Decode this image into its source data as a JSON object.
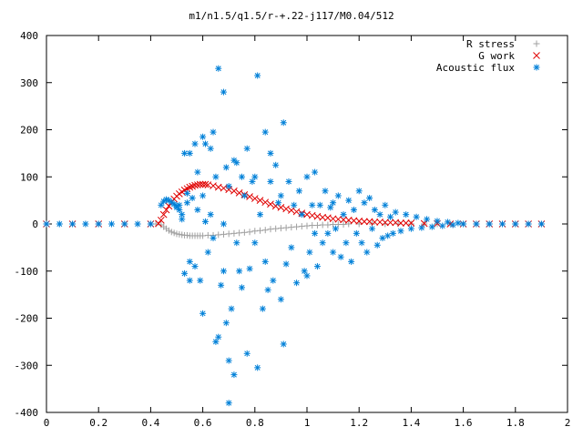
{
  "chart_data": {
    "type": "scatter",
    "title": "m1/n1.5/q1.5/r-+.22-j117/M0.04/512",
    "xlabel": "",
    "ylabel": "",
    "xlim": [
      0,
      2
    ],
    "ylim": [
      -400,
      400
    ],
    "x_ticks": [
      0,
      0.2,
      0.4,
      0.6,
      0.8,
      1,
      1.2,
      1.4,
      1.6,
      1.8,
      2
    ],
    "x_tick_labels": [
      "0",
      "0.2",
      "0.4",
      "0.6",
      "0.8",
      "1",
      "1.2",
      "1.4",
      "1.6",
      "1.8",
      "2"
    ],
    "y_ticks": [
      -400,
      -300,
      -200,
      -100,
      0,
      100,
      200,
      300,
      400
    ],
    "y_tick_labels": [
      "-400",
      "-300",
      "-200",
      "-100",
      "0",
      "100",
      "200",
      "300",
      "400"
    ],
    "grid": false,
    "legend_position": "top-right",
    "series": [
      {
        "name": "R stress",
        "marker": "plus",
        "color": "#a0a0a0",
        "points": [
          [
            0.0,
            0
          ],
          [
            0.05,
            0
          ],
          [
            0.1,
            0
          ],
          [
            0.15,
            0
          ],
          [
            0.2,
            0
          ],
          [
            0.25,
            0
          ],
          [
            0.3,
            0
          ],
          [
            0.35,
            0
          ],
          [
            0.4,
            0
          ],
          [
            0.42,
            0
          ],
          [
            0.44,
            -2
          ],
          [
            0.45,
            -6
          ],
          [
            0.46,
            -10
          ],
          [
            0.47,
            -14
          ],
          [
            0.48,
            -17
          ],
          [
            0.49,
            -19
          ],
          [
            0.5,
            -21
          ],
          [
            0.51,
            -22
          ],
          [
            0.52,
            -23
          ],
          [
            0.53,
            -24
          ],
          [
            0.54,
            -24
          ],
          [
            0.55,
            -25
          ],
          [
            0.56,
            -25
          ],
          [
            0.57,
            -25
          ],
          [
            0.58,
            -25
          ],
          [
            0.59,
            -25
          ],
          [
            0.6,
            -25
          ],
          [
            0.62,
            -24
          ],
          [
            0.64,
            -24
          ],
          [
            0.66,
            -23
          ],
          [
            0.68,
            -22
          ],
          [
            0.7,
            -21
          ],
          [
            0.72,
            -20
          ],
          [
            0.74,
            -19
          ],
          [
            0.76,
            -18
          ],
          [
            0.78,
            -17
          ],
          [
            0.8,
            -15
          ],
          [
            0.82,
            -14
          ],
          [
            0.84,
            -13
          ],
          [
            0.86,
            -11
          ],
          [
            0.88,
            -10
          ],
          [
            0.9,
            -9
          ],
          [
            0.92,
            -8
          ],
          [
            0.94,
            -7
          ],
          [
            0.96,
            -6
          ],
          [
            0.98,
            -5
          ],
          [
            1.0,
            -4
          ],
          [
            1.02,
            -3
          ],
          [
            1.04,
            -3
          ],
          [
            1.06,
            -2
          ],
          [
            1.08,
            -2
          ],
          [
            1.1,
            -1
          ],
          [
            1.12,
            -1
          ],
          [
            1.14,
            -1
          ],
          [
            1.16,
            0
          ],
          [
            1.2,
            0
          ],
          [
            1.25,
            0
          ],
          [
            1.3,
            0
          ],
          [
            1.35,
            0
          ],
          [
            1.4,
            0
          ],
          [
            1.45,
            0
          ],
          [
            1.5,
            0
          ],
          [
            1.55,
            0
          ],
          [
            1.6,
            0
          ],
          [
            1.65,
            0
          ],
          [
            1.7,
            0
          ],
          [
            1.75,
            0
          ],
          [
            1.8,
            0
          ],
          [
            1.85,
            0
          ],
          [
            1.9,
            0
          ]
        ]
      },
      {
        "name": "G work",
        "marker": "cross",
        "color": "#e00000",
        "points": [
          [
            0.0,
            0
          ],
          [
            0.1,
            0
          ],
          [
            0.2,
            0
          ],
          [
            0.3,
            0
          ],
          [
            0.4,
            0
          ],
          [
            0.43,
            1
          ],
          [
            0.44,
            8
          ],
          [
            0.45,
            20
          ],
          [
            0.46,
            30
          ],
          [
            0.47,
            38
          ],
          [
            0.48,
            46
          ],
          [
            0.49,
            53
          ],
          [
            0.5,
            59
          ],
          [
            0.51,
            64
          ],
          [
            0.52,
            68
          ],
          [
            0.53,
            72
          ],
          [
            0.54,
            75
          ],
          [
            0.55,
            78
          ],
          [
            0.56,
            80
          ],
          [
            0.57,
            82
          ],
          [
            0.58,
            83
          ],
          [
            0.59,
            84
          ],
          [
            0.6,
            84
          ],
          [
            0.61,
            84
          ],
          [
            0.62,
            83
          ],
          [
            0.64,
            81
          ],
          [
            0.66,
            78
          ],
          [
            0.68,
            76
          ],
          [
            0.7,
            73
          ],
          [
            0.72,
            70
          ],
          [
            0.74,
            66
          ],
          [
            0.76,
            62
          ],
          [
            0.78,
            58
          ],
          [
            0.8,
            54
          ],
          [
            0.82,
            50
          ],
          [
            0.84,
            46
          ],
          [
            0.86,
            42
          ],
          [
            0.88,
            38
          ],
          [
            0.9,
            35
          ],
          [
            0.92,
            32
          ],
          [
            0.94,
            29
          ],
          [
            0.96,
            26
          ],
          [
            0.98,
            23
          ],
          [
            1.0,
            20
          ],
          [
            1.02,
            18
          ],
          [
            1.04,
            16
          ],
          [
            1.06,
            14
          ],
          [
            1.08,
            13
          ],
          [
            1.1,
            11
          ],
          [
            1.12,
            10
          ],
          [
            1.14,
            9
          ],
          [
            1.16,
            8
          ],
          [
            1.18,
            7
          ],
          [
            1.2,
            6
          ],
          [
            1.22,
            5
          ],
          [
            1.24,
            5
          ],
          [
            1.26,
            4
          ],
          [
            1.28,
            4
          ],
          [
            1.3,
            3
          ],
          [
            1.32,
            3
          ],
          [
            1.34,
            3
          ],
          [
            1.36,
            2
          ],
          [
            1.38,
            2
          ],
          [
            1.4,
            2
          ],
          [
            1.45,
            1
          ],
          [
            1.5,
            1
          ],
          [
            1.55,
            0
          ],
          [
            1.6,
            0
          ],
          [
            1.65,
            0
          ],
          [
            1.7,
            0
          ],
          [
            1.75,
            0
          ],
          [
            1.8,
            0
          ],
          [
            1.85,
            0
          ],
          [
            1.9,
            0
          ]
        ]
      },
      {
        "name": "Acoustic flux",
        "marker": "star",
        "color": "#0080d8",
        "points": [
          [
            0.0,
            0
          ],
          [
            0.05,
            0
          ],
          [
            0.1,
            0
          ],
          [
            0.15,
            0
          ],
          [
            0.2,
            0
          ],
          [
            0.25,
            0
          ],
          [
            0.3,
            0
          ],
          [
            0.35,
            0
          ],
          [
            0.4,
            0
          ],
          [
            1.6,
            0
          ],
          [
            1.65,
            0
          ],
          [
            1.7,
            0
          ],
          [
            1.75,
            0
          ],
          [
            1.8,
            0
          ],
          [
            1.85,
            0
          ],
          [
            1.9,
            0
          ],
          [
            0.44,
            40
          ],
          [
            0.45,
            48
          ],
          [
            0.46,
            52
          ],
          [
            0.47,
            50
          ],
          [
            0.48,
            46
          ],
          [
            0.49,
            42
          ],
          [
            0.5,
            38
          ],
          [
            0.51,
            30
          ],
          [
            0.52,
            20
          ],
          [
            0.5,
            35
          ],
          [
            0.51,
            40
          ],
          [
            0.52,
            10
          ],
          [
            0.53,
            150
          ],
          [
            0.53,
            -105
          ],
          [
            0.54,
            45
          ],
          [
            0.54,
            65
          ],
          [
            0.55,
            150
          ],
          [
            0.55,
            -80
          ],
          [
            0.55,
            -120
          ],
          [
            0.56,
            55
          ],
          [
            0.57,
            170
          ],
          [
            0.57,
            -90
          ],
          [
            0.58,
            30
          ],
          [
            0.58,
            110
          ],
          [
            0.59,
            -120
          ],
          [
            0.6,
            185
          ],
          [
            0.6,
            60
          ],
          [
            0.6,
            -190
          ],
          [
            0.61,
            170
          ],
          [
            0.61,
            5
          ],
          [
            0.62,
            -60
          ],
          [
            0.63,
            160
          ],
          [
            0.63,
            20
          ],
          [
            0.64,
            195
          ],
          [
            0.64,
            -30
          ],
          [
            0.65,
            -250
          ],
          [
            0.65,
            100
          ],
          [
            0.66,
            330
          ],
          [
            0.66,
            -240
          ],
          [
            0.67,
            -130
          ],
          [
            0.68,
            280
          ],
          [
            0.68,
            0
          ],
          [
            0.68,
            -100
          ],
          [
            0.69,
            120
          ],
          [
            0.69,
            -210
          ],
          [
            0.7,
            -380
          ],
          [
            0.7,
            -290
          ],
          [
            0.7,
            80
          ],
          [
            0.71,
            -180
          ],
          [
            0.72,
            135
          ],
          [
            0.72,
            -320
          ],
          [
            0.73,
            130
          ],
          [
            0.73,
            -40
          ],
          [
            0.74,
            -100
          ],
          [
            0.75,
            100
          ],
          [
            0.75,
            -135
          ],
          [
            0.76,
            60
          ],
          [
            0.77,
            160
          ],
          [
            0.77,
            -275
          ],
          [
            0.78,
            -95
          ],
          [
            0.79,
            90
          ],
          [
            0.8,
            100
          ],
          [
            0.8,
            -40
          ],
          [
            0.81,
            315
          ],
          [
            0.81,
            -305
          ],
          [
            0.82,
            20
          ],
          [
            0.83,
            -180
          ],
          [
            0.84,
            195
          ],
          [
            0.84,
            -80
          ],
          [
            0.85,
            -140
          ],
          [
            0.86,
            150
          ],
          [
            0.86,
            90
          ],
          [
            0.87,
            -120
          ],
          [
            0.88,
            125
          ],
          [
            0.89,
            45
          ],
          [
            0.9,
            -160
          ],
          [
            0.9,
            60
          ],
          [
            0.91,
            215
          ],
          [
            0.91,
            -255
          ],
          [
            0.92,
            -85
          ],
          [
            0.93,
            90
          ],
          [
            0.94,
            -50
          ],
          [
            0.95,
            40
          ],
          [
            0.96,
            -125
          ],
          [
            0.97,
            70
          ],
          [
            0.98,
            20
          ],
          [
            0.99,
            -100
          ],
          [
            1.0,
            100
          ],
          [
            1.0,
            -110
          ],
          [
            1.01,
            -60
          ],
          [
            1.02,
            40
          ],
          [
            1.03,
            110
          ],
          [
            1.03,
            -20
          ],
          [
            1.04,
            -90
          ],
          [
            1.05,
            40
          ],
          [
            1.06,
            -40
          ],
          [
            1.07,
            70
          ],
          [
            1.08,
            -20
          ],
          [
            1.09,
            35
          ],
          [
            1.1,
            -60
          ],
          [
            1.1,
            45
          ],
          [
            1.11,
            -10
          ],
          [
            1.12,
            60
          ],
          [
            1.13,
            -70
          ],
          [
            1.14,
            20
          ],
          [
            1.15,
            -40
          ],
          [
            1.16,
            50
          ],
          [
            1.17,
            -80
          ],
          [
            1.18,
            30
          ],
          [
            1.19,
            -20
          ],
          [
            1.2,
            70
          ],
          [
            1.21,
            -40
          ],
          [
            1.22,
            45
          ],
          [
            1.23,
            -60
          ],
          [
            1.24,
            55
          ],
          [
            1.25,
            -10
          ],
          [
            1.26,
            30
          ],
          [
            1.27,
            -45
          ],
          [
            1.28,
            20
          ],
          [
            1.29,
            -30
          ],
          [
            1.3,
            40
          ],
          [
            1.31,
            -25
          ],
          [
            1.32,
            15
          ],
          [
            1.33,
            -20
          ],
          [
            1.34,
            25
          ],
          [
            1.36,
            -15
          ],
          [
            1.38,
            20
          ],
          [
            1.4,
            -10
          ],
          [
            1.42,
            15
          ],
          [
            1.44,
            -8
          ],
          [
            1.46,
            10
          ],
          [
            1.48,
            -6
          ],
          [
            1.5,
            6
          ],
          [
            1.52,
            -4
          ],
          [
            1.54,
            4
          ],
          [
            1.56,
            -2
          ],
          [
            1.58,
            2
          ]
        ]
      }
    ]
  }
}
